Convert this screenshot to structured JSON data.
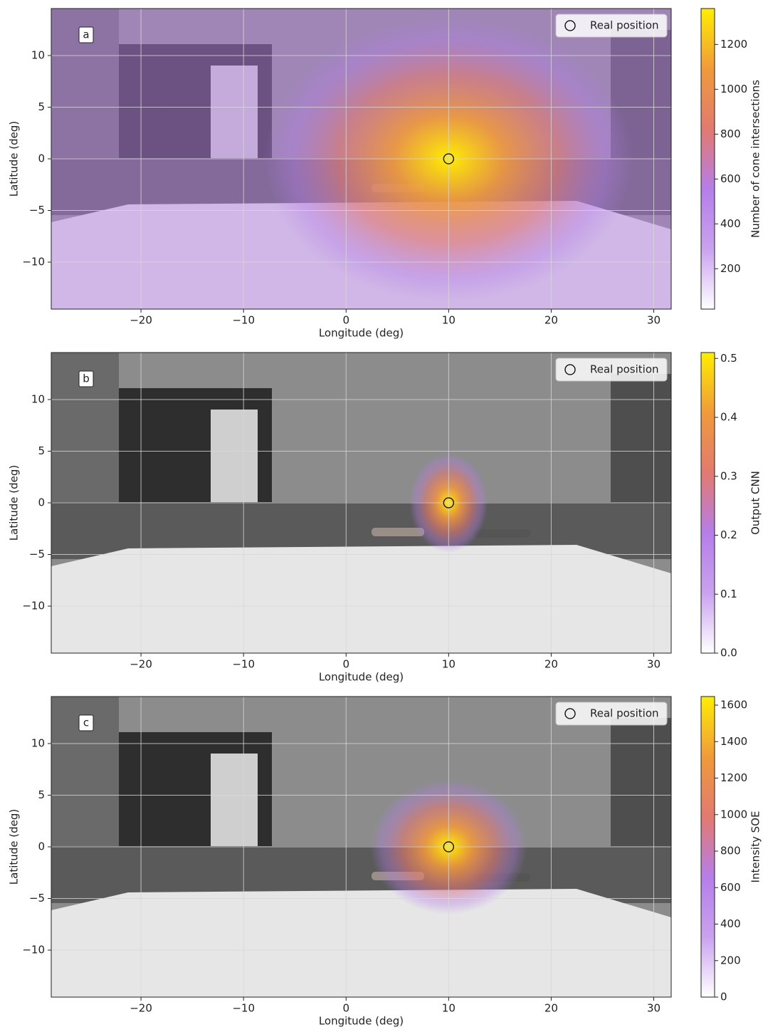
{
  "chart_data": [
    {
      "type": "heatmap",
      "panel_label": "a",
      "xlabel": "Longitude (deg)",
      "ylabel": "Latitude (deg)",
      "xlim": [
        -28.75,
        31.7
      ],
      "ylim": [
        -14.55,
        14.55
      ],
      "xticks": [
        {
          "value": -20,
          "label": "−20"
        },
        {
          "value": -10,
          "label": "−10"
        },
        0,
        10,
        20,
        30
      ],
      "yticks": [
        {
          "value": -10,
          "label": "−10"
        },
        {
          "value": -5,
          "label": "−5"
        },
        0,
        5,
        10
      ],
      "grid": true,
      "legend": "upper right",
      "series": [
        {
          "name": "Real position",
          "x": [
            10
          ],
          "y": [
            0
          ]
        }
      ],
      "hotspot": {
        "x": 10,
        "y": 0,
        "value": 1350
      },
      "colorbar": {
        "label": "Number of cone intersections",
        "lim": [
          20,
          1360
        ],
        "ticks": [
          200,
          400,
          600,
          800,
          1000,
          1200
        ],
        "colors": [
          "#ffffff",
          "#c9a2ee",
          "#b57ee8",
          "#e27a70",
          "#f09a3a",
          "#ffee00"
        ]
      }
    },
    {
      "type": "heatmap",
      "panel_label": "b",
      "xlabel": "Longitude (deg)",
      "ylabel": "Latitude (deg)",
      "xlim": [
        -28.75,
        31.7
      ],
      "ylim": [
        -14.55,
        14.55
      ],
      "xticks": [
        {
          "value": -20,
          "label": "−20"
        },
        {
          "value": -10,
          "label": "−10"
        },
        0,
        10,
        20,
        30
      ],
      "yticks": [
        {
          "value": -10,
          "label": "−10"
        },
        {
          "value": -5,
          "label": "−5"
        },
        0,
        5,
        10
      ],
      "grid": true,
      "legend": "upper right",
      "series": [
        {
          "name": "Real position",
          "x": [
            10
          ],
          "y": [
            0
          ]
        }
      ],
      "hotspot": {
        "x": 10,
        "y": 0,
        "value": 0.51
      },
      "colorbar": {
        "label": "Output CNN",
        "lim": [
          0,
          0.51
        ],
        "ticks": [
          {
            "value": 0,
            "label": "0.0"
          },
          0.1,
          0.2,
          0.3,
          0.4,
          0.5
        ],
        "colors": [
          "#ffffff",
          "#c9a2ee",
          "#b57ee8",
          "#e27a70",
          "#f09a3a",
          "#ffee00"
        ]
      }
    },
    {
      "type": "heatmap",
      "panel_label": "c",
      "xlabel": "Longitude (deg)",
      "ylabel": "Latitude (deg)",
      "xlim": [
        -28.75,
        31.7
      ],
      "ylim": [
        -14.55,
        14.55
      ],
      "xticks": [
        {
          "value": -20,
          "label": "−20"
        },
        {
          "value": -10,
          "label": "−10"
        },
        0,
        10,
        20,
        30
      ],
      "yticks": [
        {
          "value": -10,
          "label": "−10"
        },
        {
          "value": -5,
          "label": "−5"
        },
        0,
        5,
        10
      ],
      "grid": true,
      "legend": "upper right",
      "series": [
        {
          "name": "Real position",
          "x": [
            10
          ],
          "y": [
            0
          ]
        }
      ],
      "hotspot": {
        "x": 10,
        "y": 0,
        "value": 1640
      },
      "colorbar": {
        "label": "Intensity SOE",
        "lim": [
          0,
          1647
        ],
        "ticks": [
          0,
          200,
          400,
          600,
          800,
          1000,
          1200,
          1400,
          1600
        ],
        "colors": [
          "#ffffff",
          "#c9a2ee",
          "#b57ee8",
          "#e27a70",
          "#f09a3a",
          "#ffee00"
        ]
      }
    }
  ]
}
